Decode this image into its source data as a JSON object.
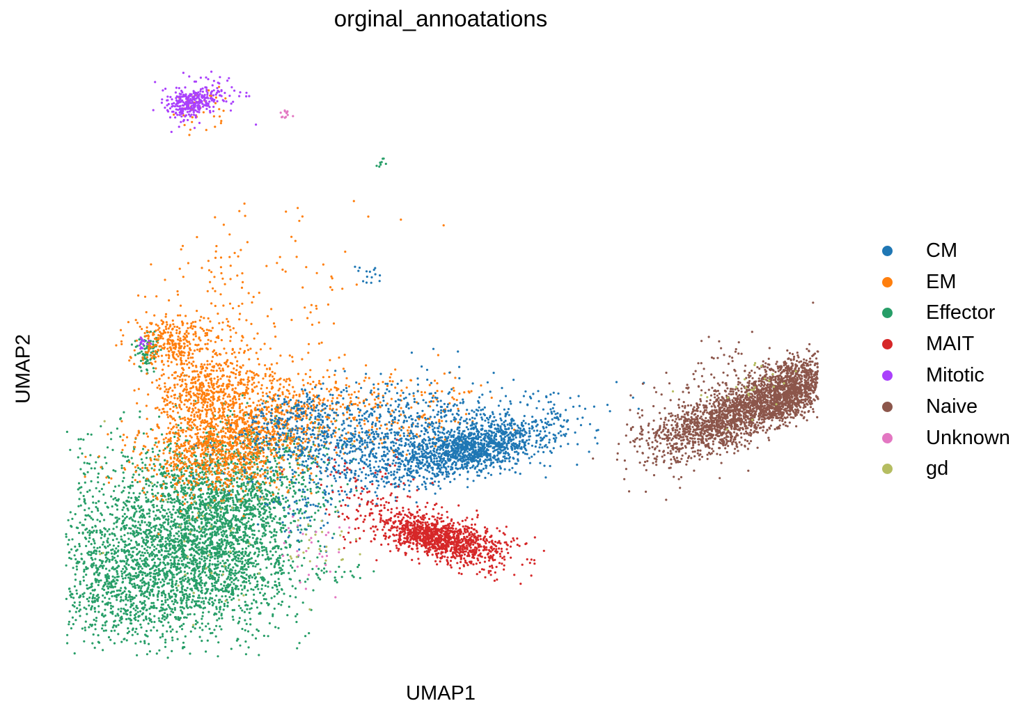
{
  "chart_data": {
    "type": "scatter",
    "title": "orginal_annoatations",
    "xlabel": "UMAP1",
    "ylabel": "UMAP2",
    "grid": false,
    "axes_visible": false,
    "legend_position": "right",
    "categories": [
      {
        "name": "CM",
        "color": "#1f77b4"
      },
      {
        "name": "EM",
        "color": "#ff7f0e"
      },
      {
        "name": "Effector",
        "color": "#279e68"
      },
      {
        "name": "MAIT",
        "color": "#d62728"
      },
      {
        "name": "Mitotic",
        "color": "#aa40fc"
      },
      {
        "name": "Naive",
        "color": "#8c564b"
      },
      {
        "name": "Unknown",
        "color": "#e377c2"
      },
      {
        "name": "gd",
        "color": "#b5bd61"
      }
    ]
  }
}
